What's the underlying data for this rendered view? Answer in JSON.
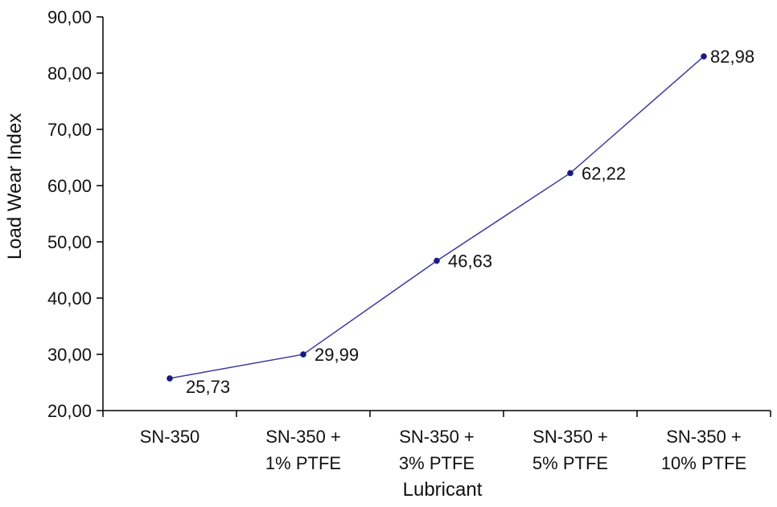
{
  "chart_data": {
    "type": "line",
    "title": "",
    "xlabel": "Lubricant",
    "ylabel": "Load Wear Index",
    "categories": [
      [
        "SN-350"
      ],
      [
        "SN-350 +",
        "1%  PTFE"
      ],
      [
        "SN-350 +",
        "3%  PTFE"
      ],
      [
        "SN-350 +",
        "5%  PTFE"
      ],
      [
        "SN-350 +",
        "10%  PTFE"
      ]
    ],
    "series": [
      {
        "values": [
          25.73,
          29.99,
          46.63,
          62.22,
          82.98
        ],
        "labels": [
          "25,73",
          "29,99",
          "46,63",
          "62,22",
          "82,98"
        ],
        "color": "#3a3aa0"
      }
    ],
    "ylim": [
      20,
      90
    ],
    "yticks": [
      20,
      30,
      40,
      50,
      60,
      70,
      80,
      90
    ],
    "ytick_labels": [
      "20,00",
      "30,00",
      "40,00",
      "50,00",
      "60,00",
      "70,00",
      "80,00",
      "90,00"
    ],
    "grid": false,
    "legend": "none"
  }
}
